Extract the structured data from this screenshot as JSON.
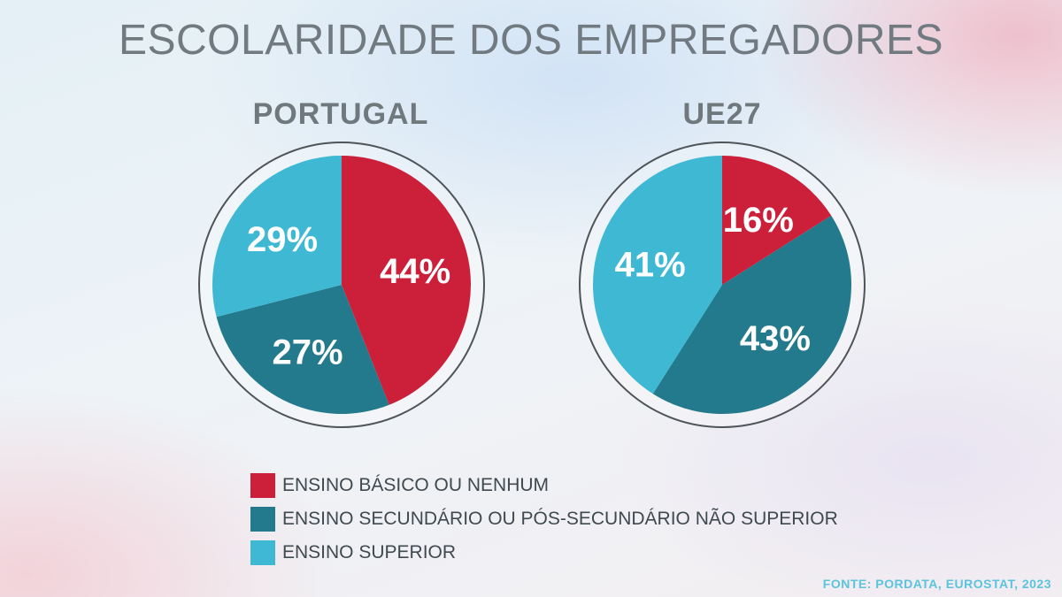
{
  "title": "ESCOLARIDADE DOS EMPREGADORES",
  "source": "FONTE: PORDATA, EUROSTAT, 2023",
  "colors": {
    "basico": "#cc1f3a",
    "secundario": "#237a8c",
    "superior": "#3fb8d3",
    "ring": "#4e5559",
    "label_text": "#ffffff"
  },
  "chart_data": [
    {
      "type": "pie",
      "title": "PORTUGAL",
      "categories": [
        "ENSINO BÁSICO OU NENHUM",
        "ENSINO SECUNDÁRIO OU PÓS-SECUNDÁRIO NÃO SUPERIOR",
        "ENSINO SUPERIOR"
      ],
      "values": [
        44,
        27,
        29
      ],
      "labels": [
        "44%",
        "27%",
        "29%"
      ],
      "start": "12 o'clock, clockwise"
    },
    {
      "type": "pie",
      "title": "UE27",
      "categories": [
        "ENSINO BÁSICO OU NENHUM",
        "ENSINO SECUNDÁRIO OU PÓS-SECUNDÁRIO NÃO SUPERIOR",
        "ENSINO SUPERIOR"
      ],
      "values": [
        16,
        43,
        41
      ],
      "labels": [
        "16%",
        "43%",
        "41%"
      ],
      "start": "12 o'clock, clockwise"
    }
  ],
  "legend": [
    {
      "label": "ENSINO BÁSICO OU NENHUM",
      "color": "#cc1f3a"
    },
    {
      "label": "ENSINO SECUNDÁRIO OU PÓS-SECUNDÁRIO NÃO SUPERIOR",
      "color": "#237a8c"
    },
    {
      "label": "ENSINO SUPERIOR",
      "color": "#3fb8d3"
    }
  ]
}
